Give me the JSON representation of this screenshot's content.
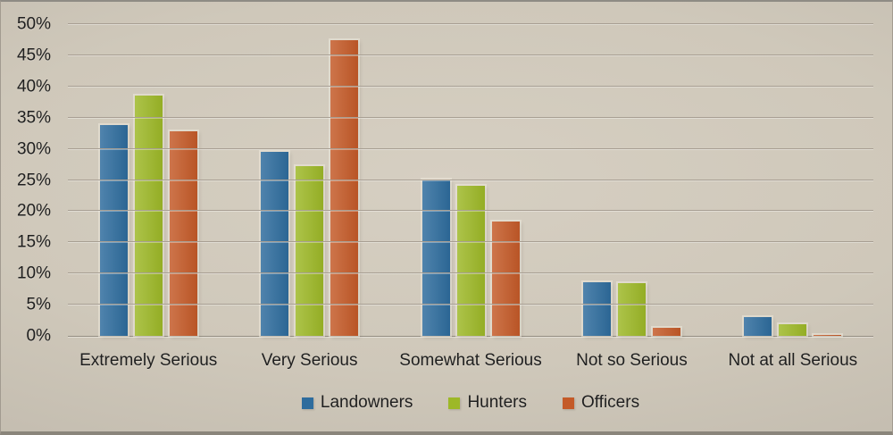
{
  "chart_data": {
    "type": "bar",
    "title": "",
    "categories": [
      "Extremely Serious",
      "Very Serious",
      "Somewhat Serious",
      "Not so Serious",
      "Not at all Serious"
    ],
    "series": [
      {
        "name": "Landowners",
        "color": "#2e6c9d",
        "values": [
          33.8,
          29.5,
          25.1,
          8.6,
          3.0
        ]
      },
      {
        "name": "Hunters",
        "color": "#9db827",
        "values": [
          38.6,
          27.2,
          24.0,
          8.4,
          1.8
        ]
      },
      {
        "name": "Officers",
        "color": "#c45a28",
        "values": [
          32.8,
          47.4,
          18.4,
          1.3,
          0.2
        ]
      }
    ],
    "y_axis": {
      "min": 0,
      "max": 50,
      "step": 5,
      "tick_suffix": "%",
      "tick_labels": [
        "0%",
        "5%",
        "10%",
        "15%",
        "20%",
        "25%",
        "30%",
        "35%",
        "40%",
        "45%",
        "50%"
      ]
    },
    "legend": {
      "position": "bottom",
      "entries": [
        "Landowners",
        "Hunters",
        "Officers"
      ]
    },
    "grid": true
  },
  "colors": {
    "background_center": "#d6cfc2",
    "background_edge": "#b5aea2",
    "gridline": "#a89f93",
    "axis_line": "#948d81",
    "text": "#1f1f1f"
  }
}
